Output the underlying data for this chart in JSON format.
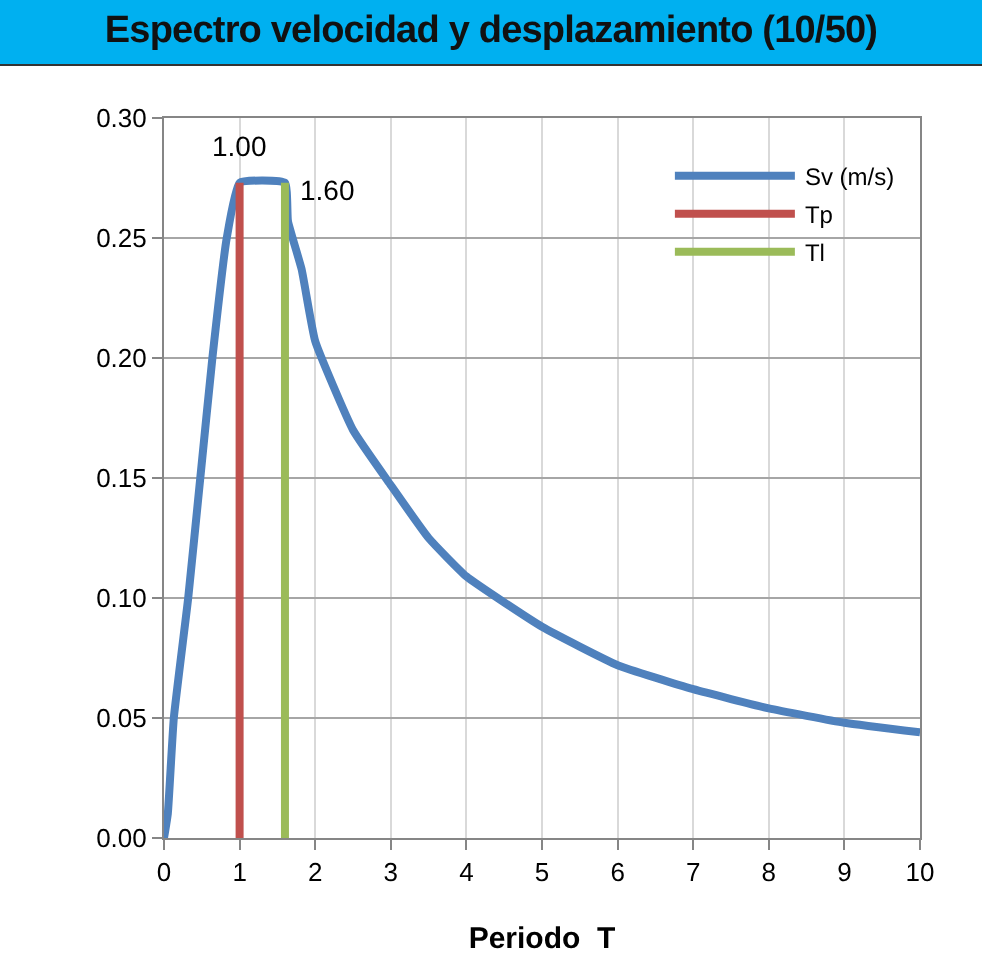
{
  "chart_data": {
    "type": "line",
    "title": "Espectro velocidad y desplazamiento (10/50)",
    "xlabel": "Periodo  T",
    "series": [
      {
        "name": "Sv (m/s)",
        "color": "#4f81bd",
        "x": [
          0,
          0.05,
          0.13,
          0.32,
          0.48,
          0.64,
          0.83,
          1.0,
          1.6,
          1.64,
          1.82,
          2,
          2.5,
          3,
          3.5,
          4,
          5,
          6,
          7,
          8,
          9,
          10
        ],
        "values": [
          0,
          0.01,
          0.05,
          0.1,
          0.15,
          0.2,
          0.25,
          0.273,
          0.273,
          0.257,
          0.237,
          0.207,
          0.17,
          0.147,
          0.125,
          0.109,
          0.088,
          0.072,
          0.062,
          0.054,
          0.048,
          0.044
        ]
      },
      {
        "name": "Tp",
        "color": "#c0504d",
        "x": [
          1,
          1
        ],
        "values": [
          0,
          0.273
        ]
      },
      {
        "name": "Tl",
        "color": "#9bbb59",
        "x": [
          1.6,
          1.6
        ],
        "values": [
          0,
          0.273
        ]
      }
    ],
    "annotations": [
      {
        "text": "1.00",
        "x": 1,
        "y": 0.273
      },
      {
        "text": "1.60",
        "x": 1.6,
        "y": 0.273
      }
    ],
    "xlim": [
      0,
      10
    ],
    "xticks": [
      0,
      1,
      2,
      3,
      4,
      5,
      6,
      7,
      8,
      9,
      10
    ],
    "ylim": [
      0,
      0.3
    ],
    "yticks": [
      {
        "value": 0,
        "label": "0.00"
      },
      {
        "value": 0.05,
        "label": "0.05"
      },
      {
        "value": 0.1,
        "label": "0.10"
      },
      {
        "value": 0.15,
        "label": "0.15"
      },
      {
        "value": 0.2,
        "label": "0.20"
      },
      {
        "value": 0.25,
        "label": "0.25"
      },
      {
        "value": 0.3,
        "label": "0.30"
      }
    ],
    "grid": true,
    "legend": "top right",
    "marker": "none",
    "line_style": "solid"
  }
}
